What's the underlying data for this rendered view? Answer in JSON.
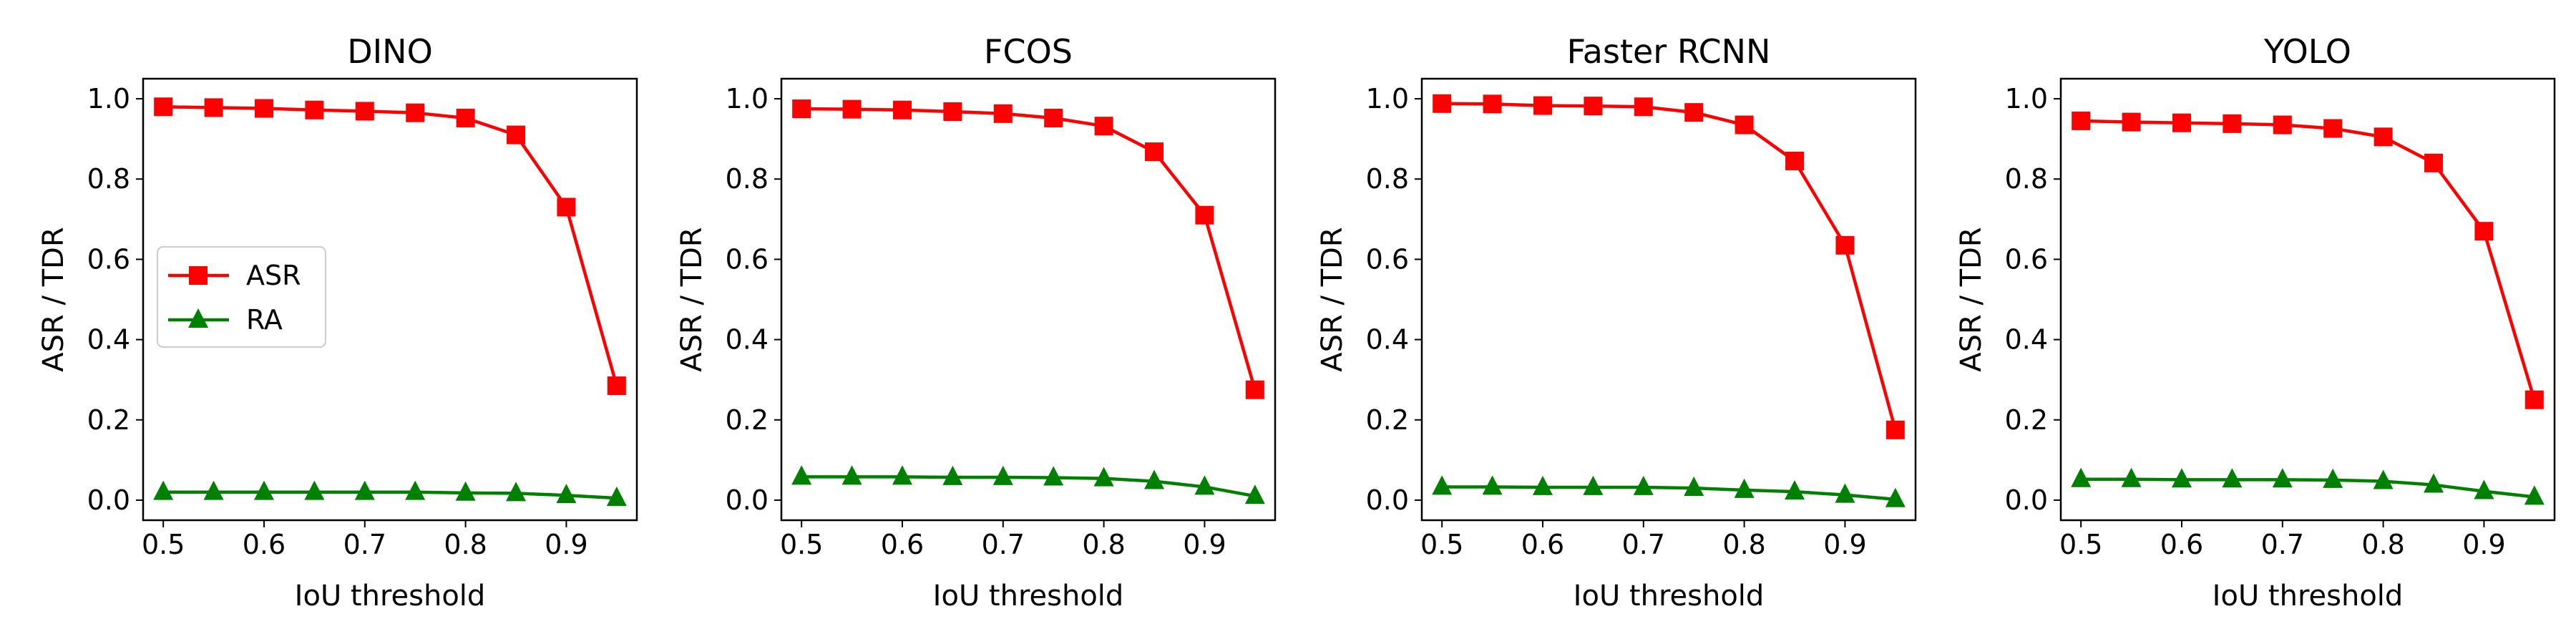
{
  "chart_data": [
    {
      "type": "line",
      "title": "DINO",
      "xlabel": "IoU threshold",
      "ylabel": "ASR / TDR",
      "xlim": [
        0.48,
        0.97
      ],
      "ylim": [
        -0.05,
        1.05
      ],
      "xticks": [
        "0.5",
        "0.6",
        "0.7",
        "0.8",
        "0.9"
      ],
      "yticks": [
        "0.0",
        "0.2",
        "0.4",
        "0.6",
        "0.8",
        "1.0"
      ],
      "x": [
        0.5,
        0.55,
        0.6,
        0.65,
        0.7,
        0.75,
        0.8,
        0.85,
        0.9,
        0.95
      ],
      "legend": "center-left",
      "series": [
        {
          "name": "ASR",
          "color": "#ff0000",
          "marker": "square",
          "values": [
            0.98,
            0.978,
            0.976,
            0.972,
            0.969,
            0.965,
            0.952,
            0.91,
            0.73,
            0.285
          ]
        },
        {
          "name": "RA",
          "color": "#008000",
          "marker": "triangle",
          "values": [
            0.02,
            0.02,
            0.02,
            0.02,
            0.02,
            0.02,
            0.018,
            0.017,
            0.012,
            0.005
          ]
        }
      ]
    },
    {
      "type": "line",
      "title": "FCOS",
      "xlabel": "IoU threshold",
      "ylabel": "ASR / TDR",
      "xlim": [
        0.48,
        0.97
      ],
      "ylim": [
        -0.05,
        1.05
      ],
      "xticks": [
        "0.5",
        "0.6",
        "0.7",
        "0.8",
        "0.9"
      ],
      "yticks": [
        "0.0",
        "0.2",
        "0.4",
        "0.6",
        "0.8",
        "1.0"
      ],
      "x": [
        0.5,
        0.55,
        0.6,
        0.65,
        0.7,
        0.75,
        0.8,
        0.85,
        0.9,
        0.95
      ],
      "legend": "none",
      "series": [
        {
          "name": "ASR",
          "color": "#ff0000",
          "marker": "square",
          "values": [
            0.975,
            0.974,
            0.972,
            0.968,
            0.963,
            0.952,
            0.932,
            0.868,
            0.71,
            0.275
          ]
        },
        {
          "name": "RA",
          "color": "#008000",
          "marker": "triangle",
          "values": [
            0.058,
            0.058,
            0.058,
            0.057,
            0.057,
            0.056,
            0.054,
            0.047,
            0.033,
            0.01
          ]
        }
      ]
    },
    {
      "type": "line",
      "title": "Faster RCNN",
      "xlabel": "IoU threshold",
      "ylabel": "ASR / TDR",
      "xlim": [
        0.48,
        0.97
      ],
      "ylim": [
        -0.05,
        1.05
      ],
      "xticks": [
        "0.5",
        "0.6",
        "0.7",
        "0.8",
        "0.9"
      ],
      "yticks": [
        "0.0",
        "0.2",
        "0.4",
        "0.6",
        "0.8",
        "1.0"
      ],
      "x": [
        0.5,
        0.55,
        0.6,
        0.65,
        0.7,
        0.75,
        0.8,
        0.85,
        0.9,
        0.95
      ],
      "legend": "none",
      "series": [
        {
          "name": "ASR",
          "color": "#ff0000",
          "marker": "square",
          "values": [
            0.988,
            0.987,
            0.983,
            0.982,
            0.98,
            0.966,
            0.935,
            0.845,
            0.635,
            0.175
          ]
        },
        {
          "name": "RA",
          "color": "#008000",
          "marker": "triangle",
          "values": [
            0.033,
            0.033,
            0.032,
            0.032,
            0.032,
            0.03,
            0.025,
            0.021,
            0.013,
            0.002
          ]
        }
      ]
    },
    {
      "type": "line",
      "title": "YOLO",
      "xlabel": "IoU threshold",
      "ylabel": "ASR / TDR",
      "xlim": [
        0.48,
        0.97
      ],
      "ylim": [
        -0.05,
        1.05
      ],
      "xticks": [
        "0.5",
        "0.6",
        "0.7",
        "0.8",
        "0.9"
      ],
      "yticks": [
        "0.0",
        "0.2",
        "0.4",
        "0.6",
        "0.8",
        "1.0"
      ],
      "x": [
        0.5,
        0.55,
        0.6,
        0.65,
        0.7,
        0.75,
        0.8,
        0.85,
        0.9,
        0.95
      ],
      "legend": "none",
      "series": [
        {
          "name": "ASR",
          "color": "#ff0000",
          "marker": "square",
          "values": [
            0.945,
            0.942,
            0.94,
            0.938,
            0.935,
            0.926,
            0.905,
            0.84,
            0.67,
            0.25
          ]
        },
        {
          "name": "RA",
          "color": "#008000",
          "marker": "triangle",
          "values": [
            0.052,
            0.052,
            0.051,
            0.051,
            0.051,
            0.05,
            0.047,
            0.038,
            0.022,
            0.008
          ]
        }
      ]
    }
  ]
}
